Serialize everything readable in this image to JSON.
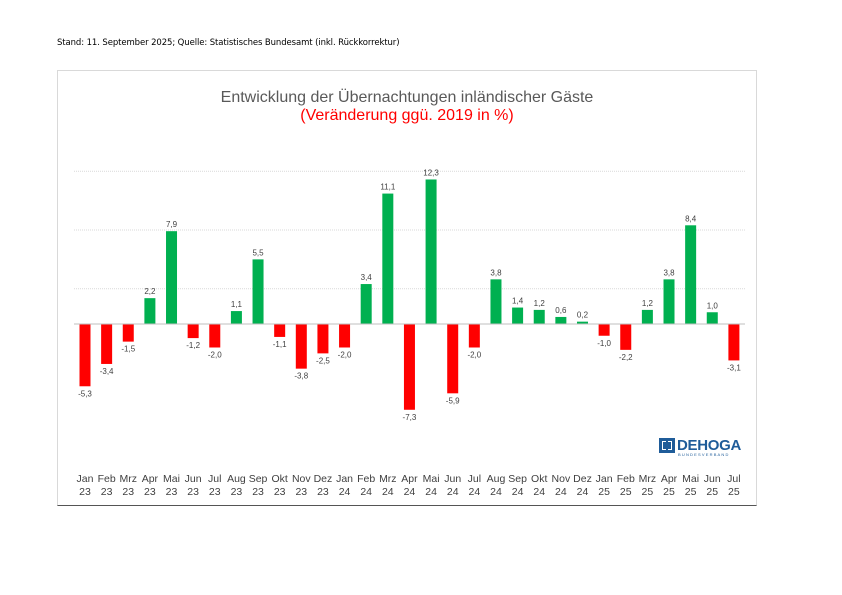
{
  "header_note": "Stand: 11. September 2025; Quelle: Statistisches Bundesamt (inkl. Rückkorrektur)",
  "logo": {
    "text": "DEHOGA",
    "subtext": "BUNDESVERBAND"
  },
  "colors": {
    "positive": "#00b050",
    "negative": "#ff0000",
    "title": "#595959",
    "subtitle": "#ff0000",
    "grid": "#d9d9d9"
  },
  "chart_data": {
    "type": "bar",
    "title": "Entwicklung der Übernachtungen inländischer Gäste",
    "subtitle": "(Veränderung ggü. 2019 in %)",
    "categories": [
      [
        "Jan",
        "23"
      ],
      [
        "Feb",
        "23"
      ],
      [
        "Mrz",
        "23"
      ],
      [
        "Apr",
        "23"
      ],
      [
        "Mai",
        "23"
      ],
      [
        "Jun",
        "23"
      ],
      [
        "Jul",
        "23"
      ],
      [
        "Aug",
        "23"
      ],
      [
        "Sep",
        "23"
      ],
      [
        "Okt",
        "23"
      ],
      [
        "Nov",
        "23"
      ],
      [
        "Dez",
        "23"
      ],
      [
        "Jan",
        "24"
      ],
      [
        "Feb",
        "24"
      ],
      [
        "Mrz",
        "24"
      ],
      [
        "Apr",
        "24"
      ],
      [
        "Mai",
        "24"
      ],
      [
        "Jun",
        "24"
      ],
      [
        "Jul",
        "24"
      ],
      [
        "Aug",
        "24"
      ],
      [
        "Sep",
        "24"
      ],
      [
        "Okt",
        "24"
      ],
      [
        "Nov",
        "24"
      ],
      [
        "Dez",
        "24"
      ],
      [
        "Jan",
        "25"
      ],
      [
        "Feb",
        "25"
      ],
      [
        "Mrz",
        "25"
      ],
      [
        "Apr",
        "25"
      ],
      [
        "Mai",
        "25"
      ],
      [
        "Jun",
        "25"
      ],
      [
        "Jul",
        "25"
      ]
    ],
    "values": [
      -5.3,
      -3.4,
      -1.5,
      2.2,
      7.9,
      -1.2,
      -2.0,
      1.1,
      5.5,
      -1.1,
      -3.8,
      -2.5,
      -2.0,
      3.4,
      11.1,
      -7.3,
      12.3,
      -5.9,
      -2.0,
      3.8,
      1.4,
      1.2,
      0.6,
      0.2,
      -1.0,
      -2.2,
      1.2,
      3.8,
      8.4,
      1.0,
      -3.1
    ],
    "value_labels": [
      "-5,3",
      "-3,4",
      "-1,5",
      "2,2",
      "7,9",
      "-1,2",
      "-2,0",
      "1,1",
      "5,5",
      "-1,1",
      "-3,8",
      "-2,5",
      "-2,0",
      "3,4",
      "11,1",
      "-7,3",
      "12,3",
      "-5,9",
      "-2,0",
      "3,8",
      "1,4",
      "1,2",
      "0,6",
      "0,2",
      "-1,0",
      "-2,2",
      "1,2",
      "3,8",
      "8,4",
      "1,0",
      "-3,1"
    ],
    "ylim": [
      -10,
      14
    ],
    "gridlines": [
      3,
      8,
      13
    ],
    "grid": true,
    "legend": "none"
  }
}
